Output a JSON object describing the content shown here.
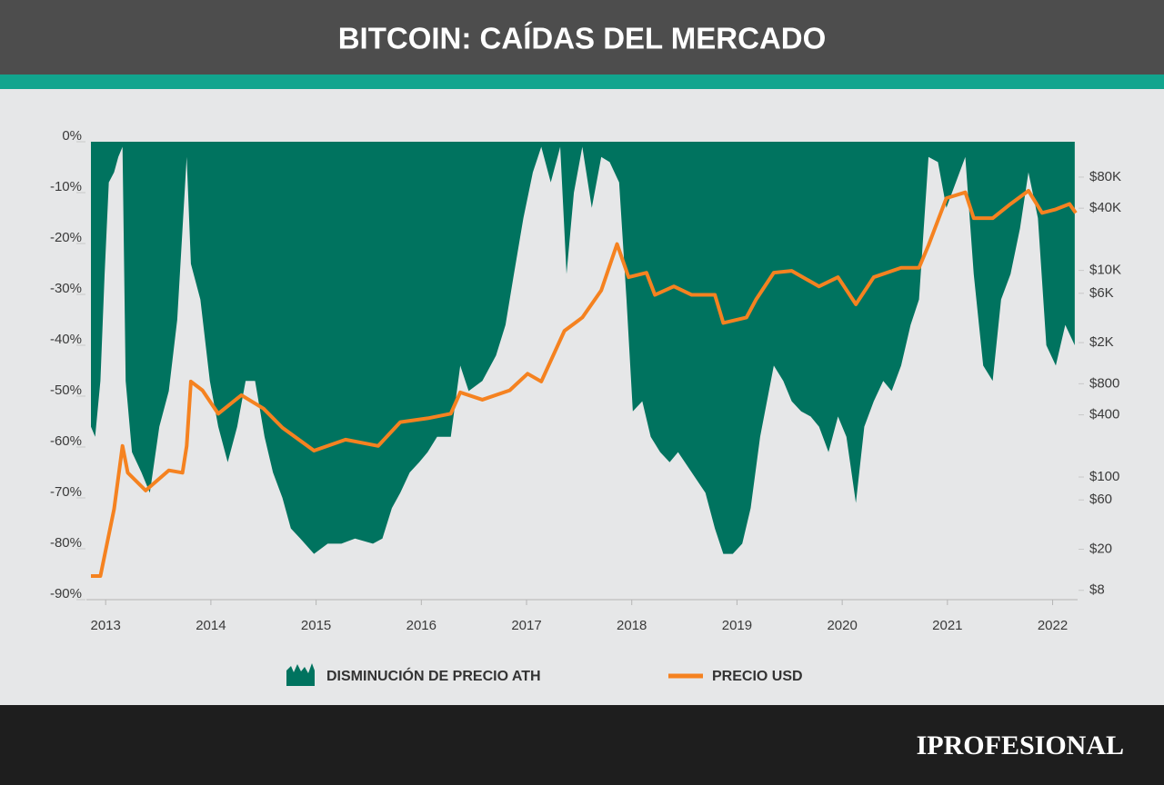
{
  "header": {
    "title": "BITCOIN: CAÍDAS DEL MERCADO"
  },
  "footer": {
    "brand": "IPROFESIONAL"
  },
  "chart_data": {
    "type": "area",
    "xlim": [
      2012.86,
      2022.22
    ],
    "xticks": [
      2013,
      2014,
      2015,
      2016,
      2017,
      2018,
      2019,
      2020,
      2021,
      2022
    ],
    "ylim": [
      -90,
      0
    ],
    "yticks": [
      {
        "value": 0,
        "label": "0%"
      },
      {
        "value": -10,
        "label": "-10%"
      },
      {
        "value": -20,
        "label": "-20%"
      },
      {
        "value": -30,
        "label": "-30%"
      },
      {
        "value": -40,
        "label": "-40%"
      },
      {
        "value": -50,
        "label": "-50%"
      },
      {
        "value": -60,
        "label": "-60%"
      },
      {
        "value": -70,
        "label": "-70%"
      },
      {
        "value": -80,
        "label": "-80%"
      },
      {
        "value": -90,
        "label": "-90%"
      }
    ],
    "y2lim": [
      6.5,
      176000
    ],
    "y2scale": "log",
    "y2ticks": [
      {
        "value": 8,
        "label": "$8"
      },
      {
        "value": 20,
        "label": "$20"
      },
      {
        "value": 60,
        "label": "$60"
      },
      {
        "value": 100,
        "label": "$100"
      },
      {
        "value": 400,
        "label": "$400"
      },
      {
        "value": 800,
        "label": "$800"
      },
      {
        "value": 2000,
        "label": "$2K"
      },
      {
        "value": 6000,
        "label": "$6K"
      },
      {
        "value": 10000,
        "label": "$10K"
      },
      {
        "value": 40000,
        "label": "$40K"
      },
      {
        "value": 80000,
        "label": "$80K"
      }
    ],
    "series": [
      {
        "name": "DISMINUCIÓN DE PRECIO ATH",
        "type": "area",
        "color": "#00735f",
        "x": [
          2012.86,
          2012.9,
          2012.95,
          2012.99,
          2013.03,
          2013.08,
          2013.12,
          2013.16,
          2013.19,
          2013.25,
          2013.34,
          2013.42,
          2013.51,
          2013.6,
          2013.68,
          2013.77,
          2013.81,
          2013.9,
          2013.99,
          2014.07,
          2014.16,
          2014.25,
          2014.33,
          2014.42,
          2014.51,
          2014.59,
          2014.68,
          2014.76,
          2014.85,
          2014.98,
          2015.11,
          2015.24,
          2015.37,
          2015.54,
          2015.63,
          2015.72,
          2015.8,
          2015.89,
          2015.98,
          2016.06,
          2016.15,
          2016.28,
          2016.37,
          2016.45,
          2016.58,
          2016.71,
          2016.8,
          2016.88,
          2016.97,
          2017.06,
          2017.14,
          2017.23,
          2017.32,
          2017.38,
          2017.45,
          2017.53,
          2017.62,
          2017.71,
          2017.79,
          2017.88,
          2017.95,
          2018.01,
          2018.1,
          2018.18,
          2018.27,
          2018.36,
          2018.44,
          2018.57,
          2018.7,
          2018.79,
          2018.87,
          2018.96,
          2019.05,
          2019.13,
          2019.22,
          2019.35,
          2019.44,
          2019.52,
          2019.61,
          2019.7,
          2019.78,
          2019.87,
          2019.96,
          2020.04,
          2020.13,
          2020.21,
          2020.3,
          2020.39,
          2020.47,
          2020.56,
          2020.65,
          2020.73,
          2020.82,
          2020.91,
          2020.99,
          2021.08,
          2021.17,
          2021.25,
          2021.34,
          2021.43,
          2021.51,
          2021.6,
          2021.69,
          2021.77,
          2021.86,
          2021.94,
          2022.03,
          2022.12,
          2022.21
        ],
        "values": [
          -56,
          -58,
          -47,
          -26,
          -8,
          -6,
          -3,
          -1,
          -47,
          -61,
          -65,
          -69,
          -56,
          -49,
          -35,
          -3,
          -24,
          -31,
          -47,
          -56,
          -63,
          -56,
          -47,
          -47,
          -58,
          -65,
          -70,
          -76,
          -78,
          -81,
          -79,
          -79,
          -78,
          -79,
          -78,
          -72,
          -69,
          -65,
          -63,
          -61,
          -58,
          -58,
          -44,
          -49,
          -47,
          -42,
          -36,
          -26,
          -15,
          -6,
          -1,
          -8,
          -1,
          -26,
          -10,
          -1,
          -13,
          -3,
          -4,
          -8,
          -31,
          -53,
          -51,
          -58,
          -61,
          -63,
          -61,
          -65,
          -69,
          -76,
          -81,
          -81,
          -79,
          -72,
          -58,
          -44,
          -47,
          -51,
          -53,
          -54,
          -56,
          -61,
          -54,
          -58,
          -71,
          -56,
          -51,
          -47,
          -49,
          -44,
          -36,
          -31,
          -3,
          -4,
          -13,
          -8,
          -3,
          -26,
          -44,
          -47,
          -31,
          -26,
          -17,
          -6,
          -15,
          -40,
          -44,
          -36,
          -40
        ]
      },
      {
        "name": "PRECIO USD",
        "type": "line",
        "axis": "y2",
        "color": "#f58220",
        "x": [
          2012.86,
          2012.95,
          2013.08,
          2013.16,
          2013.21,
          2013.38,
          2013.6,
          2013.73,
          2013.77,
          2013.81,
          2013.92,
          2014.07,
          2014.29,
          2014.5,
          2014.68,
          2014.98,
          2015.28,
          2015.59,
          2015.8,
          2016.06,
          2016.28,
          2016.37,
          2016.58,
          2016.84,
          2017.01,
          2017.14,
          2017.36,
          2017.53,
          2017.71,
          2017.86,
          2017.97,
          2018.14,
          2018.22,
          2018.4,
          2018.57,
          2018.79,
          2018.87,
          2019.09,
          2019.18,
          2019.35,
          2019.52,
          2019.78,
          2019.96,
          2020.13,
          2020.3,
          2020.56,
          2020.73,
          2020.82,
          2020.99,
          2021.17,
          2021.25,
          2021.43,
          2021.6,
          2021.77,
          2021.9,
          2022.03,
          2022.16,
          2022.22
        ],
        "values": [
          11,
          11,
          49,
          200,
          110,
          74,
          116,
          110,
          200,
          840,
          690,
          410,
          620,
          460,
          300,
          180,
          230,
          200,
          340,
          370,
          410,
          660,
          560,
          690,
          1000,
          840,
          2600,
          3500,
          6400,
          18000,
          8600,
          9500,
          5800,
          7000,
          5800,
          5800,
          3100,
          3500,
          5200,
          9500,
          9900,
          7000,
          8600,
          4700,
          8600,
          10600,
          10600,
          17500,
          50000,
          57000,
          32000,
          32000,
          44000,
          59000,
          36000,
          39000,
          44000,
          36000
        ]
      }
    ]
  }
}
